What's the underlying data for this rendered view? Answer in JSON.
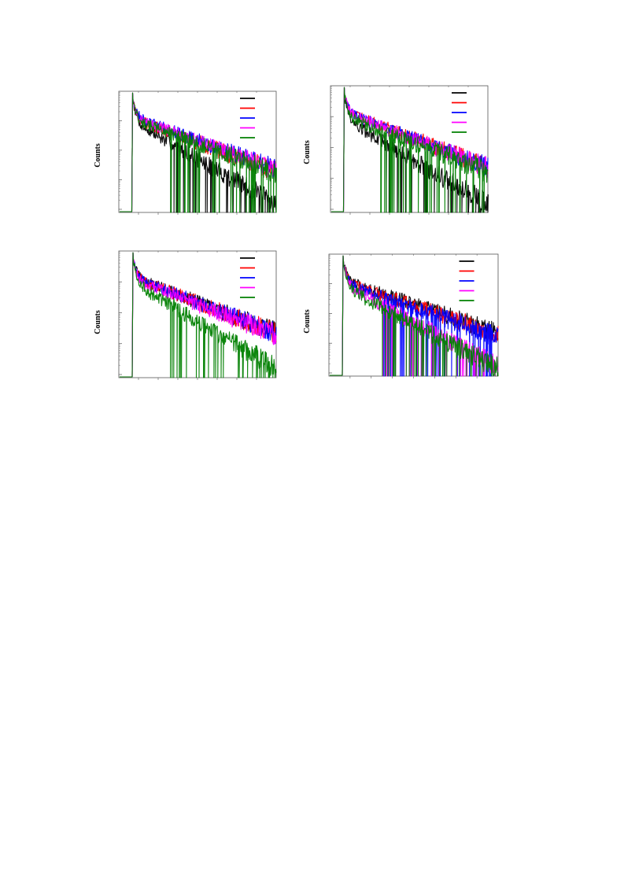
{
  "chart_data": [
    {
      "type": "line",
      "ylabel": "Counts",
      "yscale": "log",
      "grid": false,
      "legend": "top-right",
      "tail_decades": [
        2.05,
        1.55,
        1.05,
        1.85
      ],
      "series": [
        {
          "color": "#000000",
          "tail_level": 0.08
        },
        {
          "color": "#ff0000",
          "tail_level": 0.17
        },
        {
          "color": "#0000ff",
          "tail_level": 0.24
        },
        {
          "color": "#ff00ff",
          "tail_level": 0.2
        },
        {
          "color": "#008000",
          "tail_level": 0.13
        }
      ]
    },
    {
      "type": "line",
      "ylabel": "Counts",
      "yscale": "log",
      "grid": false,
      "legend": "top-right",
      "series": [
        {
          "color": "#000000",
          "tail_level": 0.05
        },
        {
          "color": "#ff0000",
          "tail_level": 0.25
        },
        {
          "color": "#0000ff",
          "tail_level": 0.23
        },
        {
          "color": "#ff00ff",
          "tail_level": 0.22
        },
        {
          "color": "#008000",
          "tail_level": 0.11
        }
      ]
    },
    {
      "type": "line",
      "ylabel": "Counts",
      "yscale": "log",
      "grid": false,
      "legend": "top-right",
      "series": [
        {
          "color": "#000000",
          "tail_level": 0.24
        },
        {
          "color": "#ff0000",
          "tail_level": 0.23
        },
        {
          "color": "#0000ff",
          "tail_level": 0.22
        },
        {
          "color": "#ff00ff",
          "tail_level": 0.17
        },
        {
          "color": "#008000",
          "tail_level": 0.08
        }
      ]
    },
    {
      "type": "line",
      "ylabel": "Counts",
      "yscale": "log",
      "grid": false,
      "legend": "top-right",
      "series": [
        {
          "color": "#000000",
          "tail_level": 0.22
        },
        {
          "color": "#ff0000",
          "tail_level": 0.17
        },
        {
          "color": "#0000ff",
          "tail_level": 0.11
        },
        {
          "color": "#ff00ff",
          "tail_level": 0.09
        },
        {
          "color": "#008000",
          "tail_level": 0.03
        }
      ]
    }
  ]
}
